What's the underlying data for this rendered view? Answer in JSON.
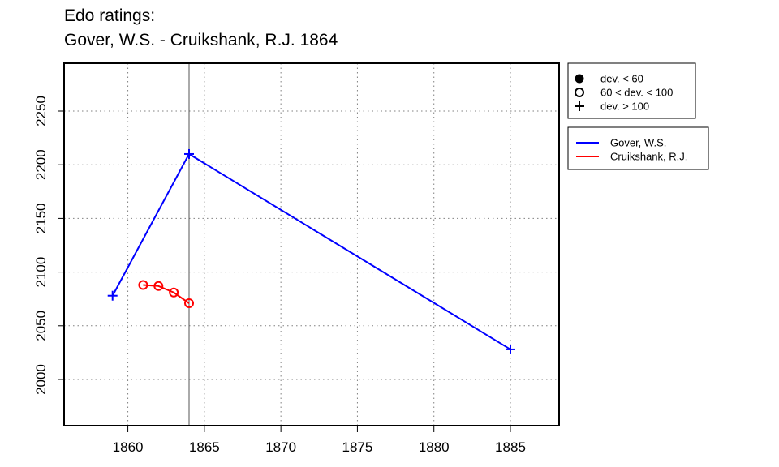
{
  "chart_data": {
    "type": "line",
    "title_line1": "Edo ratings:",
    "title_line2": "Gover, W.S. - Cruikshank, R.J. 1864",
    "xlabel": "",
    "ylabel": "",
    "xlim": [
      1855,
      1888
    ],
    "ylim": [
      1985,
      2287
    ],
    "x_ticks": [
      1860,
      1865,
      1870,
      1875,
      1880,
      1885
    ],
    "y_ticks": [
      2000,
      2050,
      2100,
      2150,
      2200,
      2250
    ],
    "grid": true,
    "reference_line_x": 1864,
    "marker_legend": [
      {
        "symbol": "filled-circle",
        "label": "dev. < 60"
      },
      {
        "symbol": "open-circle",
        "label": "60 < dev. < 100"
      },
      {
        "symbol": "plus",
        "label": "dev. > 100"
      }
    ],
    "legend_position": "right",
    "series": [
      {
        "name": "Gover, W.S.",
        "color": "#0000ff",
        "points": [
          {
            "x": 1859,
            "y": 2078,
            "marker": "plus"
          },
          {
            "x": 1864,
            "y": 2210,
            "marker": "plus"
          },
          {
            "x": 1885,
            "y": 2028,
            "marker": "plus"
          }
        ]
      },
      {
        "name": "Cruikshank, R.J.",
        "color": "#ff0000",
        "points": [
          {
            "x": 1861,
            "y": 2088,
            "marker": "open-circle"
          },
          {
            "x": 1862,
            "y": 2087,
            "marker": "open-circle"
          },
          {
            "x": 1863,
            "y": 2081,
            "marker": "open-circle"
          },
          {
            "x": 1864,
            "y": 2071,
            "marker": "open-circle"
          }
        ]
      }
    ]
  }
}
